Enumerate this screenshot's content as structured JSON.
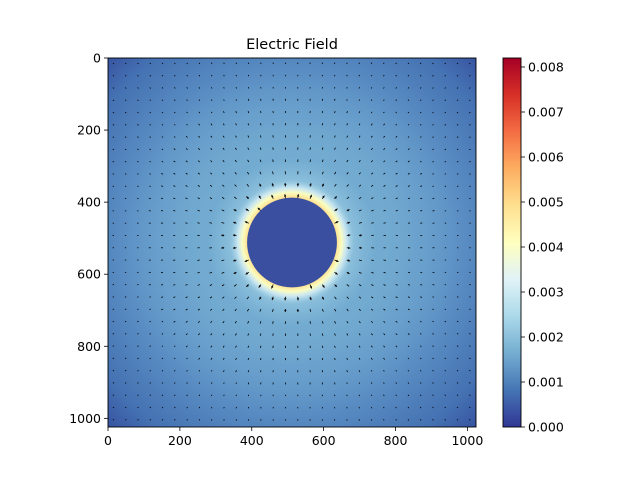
{
  "chart_data": [
    {
      "type": "heatmap",
      "title": "Electric Field",
      "xlabel": "",
      "ylabel": "",
      "xlim": [
        0,
        1024
      ],
      "ylim": [
        1024,
        0
      ],
      "x_ticks": [
        0,
        200,
        400,
        600,
        800,
        1000
      ],
      "y_ticks": [
        0,
        200,
        400,
        600,
        800,
        1000
      ],
      "x_tick_labels": [
        "0",
        "200",
        "400",
        "600",
        "800",
        "1000"
      ],
      "y_tick_labels": [
        "0",
        "200",
        "400",
        "600",
        "800",
        "1000"
      ],
      "overlay": "quiver",
      "charge_center": [
        512,
        512
      ],
      "charge_radius": 125,
      "grid": false
    },
    {
      "type": "colorbar",
      "colormap": "RdYlBu_r",
      "range": [
        0.0,
        0.0082
      ],
      "ticks": [
        0.0,
        0.001,
        0.002,
        0.003,
        0.004,
        0.005,
        0.006,
        0.007,
        0.008
      ],
      "tick_labels": [
        "0.000",
        "0.001",
        "0.002",
        "0.003",
        "0.004",
        "0.005",
        "0.006",
        "0.007",
        "0.008"
      ]
    }
  ],
  "colors": {
    "disk": "#3a4fa0",
    "arrow": "#000000",
    "axis": "#000000"
  }
}
